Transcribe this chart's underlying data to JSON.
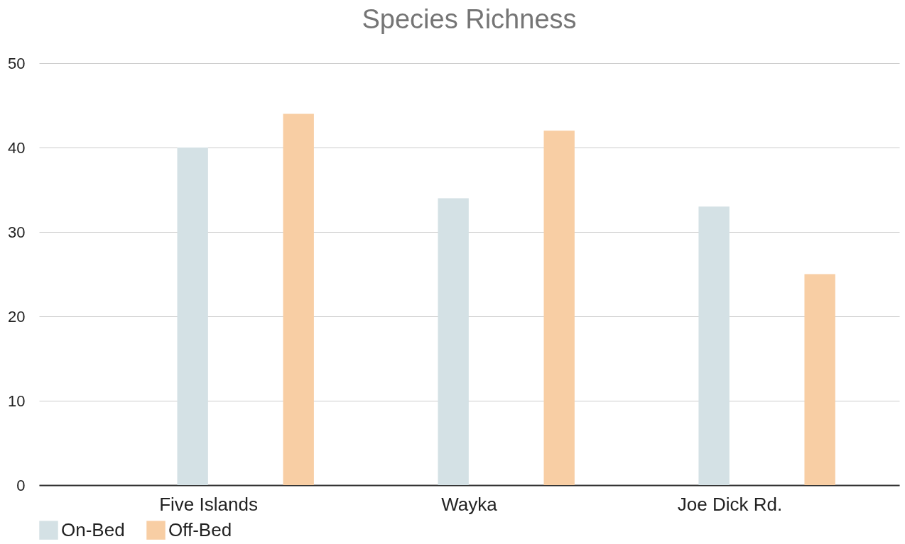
{
  "chart_data": {
    "type": "bar",
    "title": "Species Richness",
    "categories": [
      "Five Islands",
      "Wayka",
      "Joe Dick Rd."
    ],
    "series": [
      {
        "name": "On-Bed",
        "color": "#d4e1e5",
        "values": [
          40,
          34,
          33
        ]
      },
      {
        "name": "Off-Bed",
        "color": "#f8cea4",
        "values": [
          44,
          42,
          25
        ]
      }
    ],
    "ylim": [
      0,
      50
    ],
    "yticks": [
      0,
      10,
      20,
      30,
      40,
      50
    ],
    "grid": "y",
    "legend": "bottom"
  }
}
